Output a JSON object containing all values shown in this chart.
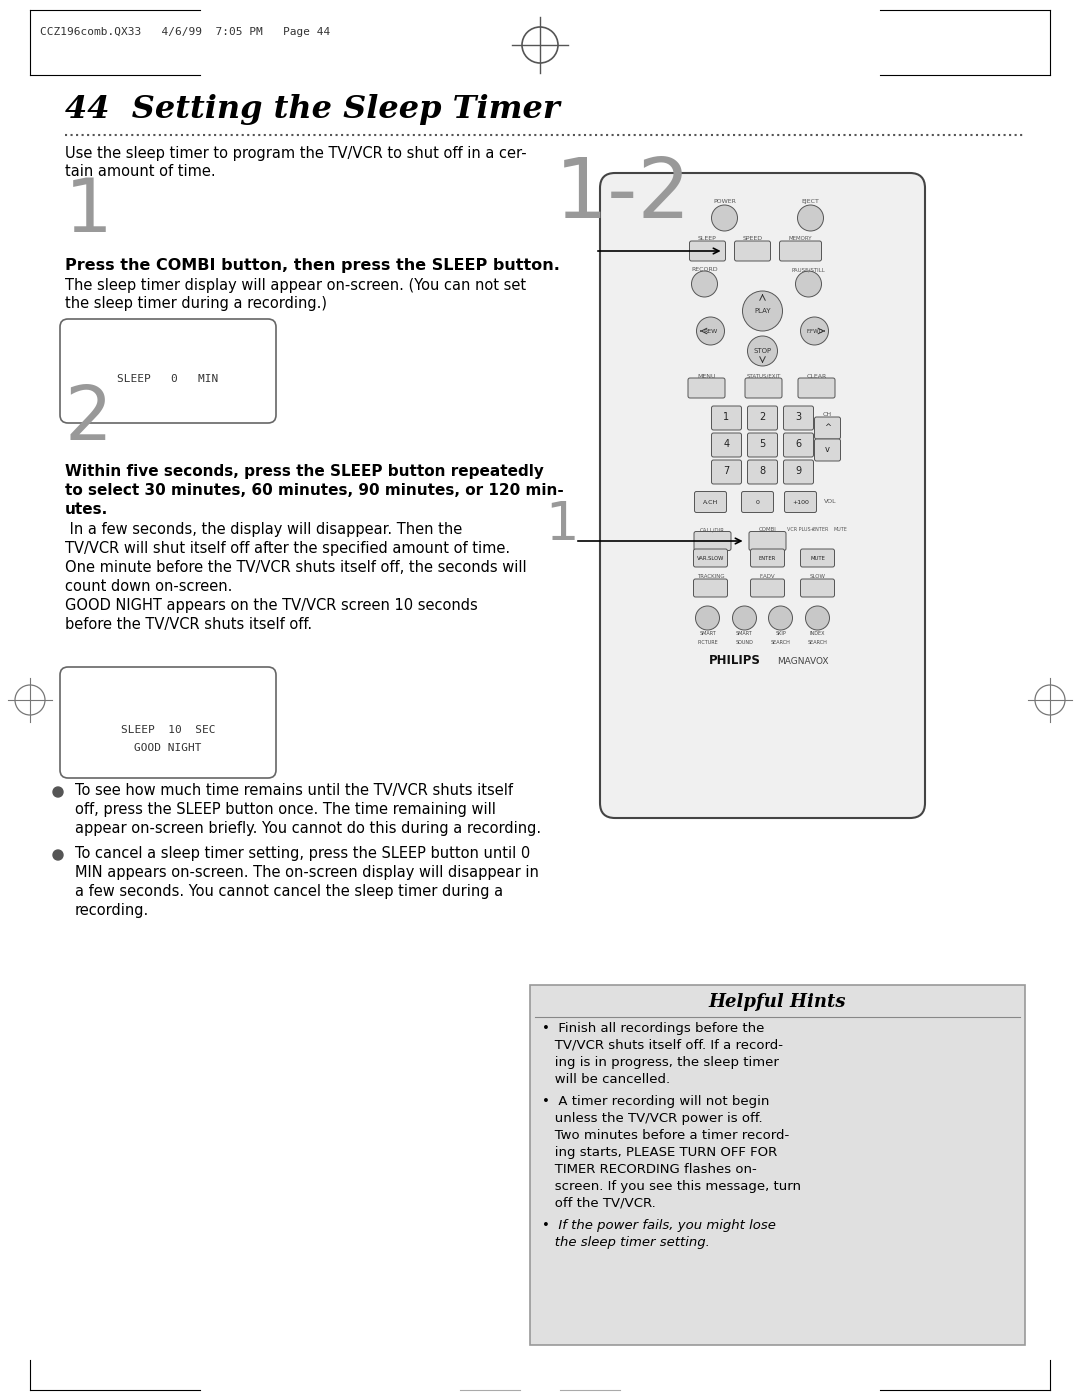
{
  "bg_color": "#ffffff",
  "header_text": "CCZ196comb.QX33   4/6/99  7:05 PM   Page 44",
  "title": "44  Setting the Sleep Timer",
  "display1_text": "SLEEP   0   MIN",
  "display2_text1": "SLEEP  10  SEC",
  "display2_text2": "GOOD NIGHT",
  "helpful_hints_title": "Helpful Hints",
  "step_num_color": "#999999",
  "text_color": "#000000",
  "hint_box_bg": "#e0e0e0",
  "hint_border": "#999999"
}
